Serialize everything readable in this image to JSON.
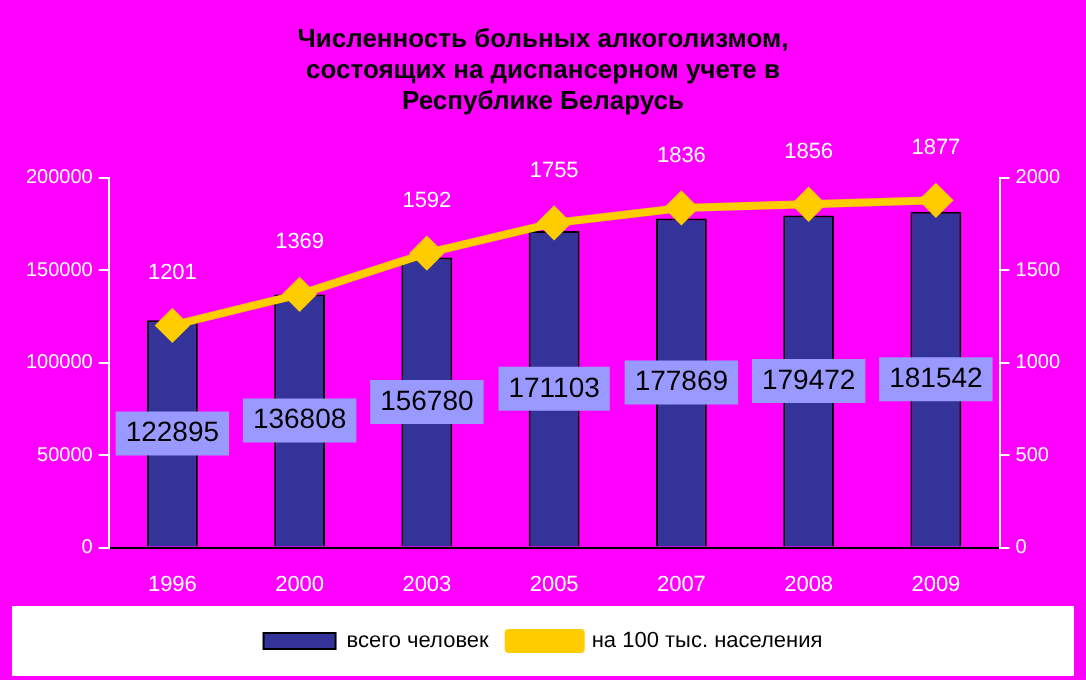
{
  "chart_data": {
    "type": "bar",
    "title": "Численность больных алкоголизмом, состоящих на диспансерном учете в Республике Беларусь",
    "categories": [
      "1996",
      "2000",
      "2003",
      "2005",
      "2007",
      "2008",
      "2009"
    ],
    "series": [
      {
        "name": "всего человек",
        "color": "#333399",
        "values": [
          122895,
          136808,
          156780,
          171103,
          177869,
          179472,
          181542
        ]
      },
      {
        "name": "на 100 тыс. населения",
        "type": "line",
        "axis": "y2",
        "color": "#ffcc00",
        "values": [
          1201,
          1369,
          1592,
          1755,
          1836,
          1856,
          1877
        ]
      }
    ],
    "ylim": [
      0,
      200000
    ],
    "yticks": [
      0,
      50000,
      100000,
      150000,
      200000
    ],
    "y2lim": [
      0,
      2000
    ],
    "y2ticks": [
      0,
      500,
      1000,
      1500,
      2000
    ],
    "data_labels": true,
    "grid": false,
    "legend": "bottom",
    "marker": "diamond",
    "line_style": "solid"
  }
}
